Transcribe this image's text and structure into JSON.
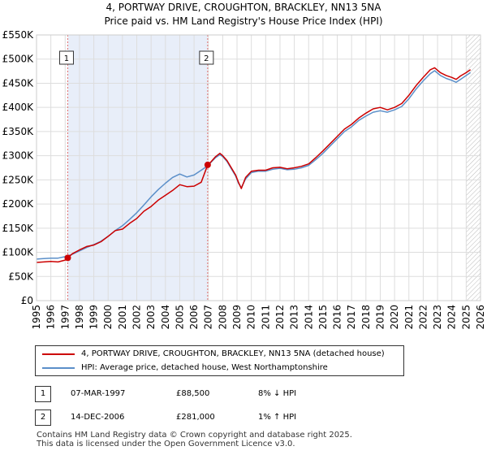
{
  "chart_data": {
    "type": "line",
    "title": "4, PORTWAY DRIVE, CROUGHTON, BRACKLEY, NN13 5NA",
    "subtitle": "Price paid vs. HM Land Registry's House Price Index (HPI)",
    "xlabel": "",
    "ylabel": "",
    "xlim": [
      1995,
      2026
    ],
    "ylim": [
      0,
      550000
    ],
    "y_ticks": [
      0,
      50000,
      100000,
      150000,
      200000,
      250000,
      300000,
      350000,
      400000,
      450000,
      500000,
      550000
    ],
    "y_tick_labels": [
      "£0",
      "£50K",
      "£100K",
      "£150K",
      "£200K",
      "£250K",
      "£300K",
      "£350K",
      "£400K",
      "£450K",
      "£500K",
      "£550K"
    ],
    "x_ticks": [
      1995,
      1996,
      1997,
      1998,
      1999,
      2000,
      2001,
      2002,
      2003,
      2004,
      2005,
      2006,
      2007,
      2008,
      2009,
      2010,
      2011,
      2012,
      2013,
      2014,
      2015,
      2016,
      2017,
      2018,
      2019,
      2020,
      2021,
      2022,
      2023,
      2024,
      2025,
      2026
    ],
    "x_tick_labels": [
      "1995",
      "1996",
      "1997",
      "1998",
      "1999",
      "2000",
      "2001",
      "2002",
      "2003",
      "2004",
      "2005",
      "2006",
      "2007",
      "2008",
      "2009",
      "2010",
      "2011",
      "2012",
      "2013",
      "2014",
      "2015",
      "2016",
      "2017",
      "2018",
      "2019",
      "2020",
      "2021",
      "2022",
      "2023",
      "2024",
      "2025",
      "2026"
    ],
    "grid": true,
    "shaded_region": [
      1997.18,
      2006.95
    ],
    "forecast_from": 2025.0,
    "series": [
      {
        "name": "4, PORTWAY DRIVE, CROUGHTON, BRACKLEY, NN13 5NA (detached house)",
        "color": "#cc0000",
        "x": [
          1995.0,
          1995.5,
          1996.0,
          1996.5,
          1997.0,
          1997.18,
          1997.5,
          1998.0,
          1998.5,
          1999.0,
          1999.5,
          2000.0,
          2000.5,
          2001.0,
          2001.5,
          2002.0,
          2002.5,
          2003.0,
          2003.5,
          2004.0,
          2004.5,
          2005.0,
          2005.5,
          2006.0,
          2006.5,
          2006.95,
          2007.2,
          2007.5,
          2007.8,
          2008.0,
          2008.3,
          2008.6,
          2008.9,
          2009.1,
          2009.3,
          2009.6,
          2010.0,
          2010.5,
          2011.0,
          2011.5,
          2012.0,
          2012.5,
          2013.0,
          2013.5,
          2014.0,
          2014.5,
          2015.0,
          2015.5,
          2016.0,
          2016.5,
          2017.0,
          2017.5,
          2018.0,
          2018.5,
          2019.0,
          2019.5,
          2020.0,
          2020.5,
          2021.0,
          2021.5,
          2022.0,
          2022.5,
          2022.8,
          2023.2,
          2023.6,
          2024.0,
          2024.3,
          2024.6,
          2025.0,
          2025.3
        ],
        "values": [
          79000,
          80000,
          81000,
          80000,
          84000,
          88500,
          97000,
          105000,
          112000,
          115000,
          122000,
          133000,
          145000,
          148000,
          160000,
          170000,
          185000,
          195000,
          208000,
          218000,
          228000,
          240000,
          236000,
          237000,
          245000,
          281000,
          288000,
          298000,
          305000,
          300000,
          290000,
          275000,
          260000,
          245000,
          232000,
          255000,
          268000,
          270000,
          270000,
          275000,
          276000,
          273000,
          275000,
          278000,
          283000,
          296000,
          310000,
          325000,
          340000,
          355000,
          365000,
          378000,
          388000,
          397000,
          400000,
          395000,
          400000,
          408000,
          425000,
          445000,
          462000,
          478000,
          482000,
          472000,
          466000,
          462000,
          458000,
          465000,
          472000,
          478000
        ]
      },
      {
        "name": "HPI: Average price, detached house, West Northamptonshire",
        "color": "#5b8fc9",
        "x": [
          1995.0,
          1995.5,
          1996.0,
          1996.5,
          1997.0,
          1997.5,
          1998.0,
          1998.5,
          1999.0,
          1999.5,
          2000.0,
          2000.5,
          2001.0,
          2001.5,
          2002.0,
          2002.5,
          2003.0,
          2003.5,
          2004.0,
          2004.5,
          2005.0,
          2005.5,
          2006.0,
          2006.5,
          2006.95,
          2007.2,
          2007.5,
          2007.8,
          2008.0,
          2008.3,
          2008.6,
          2008.9,
          2009.1,
          2009.3,
          2009.6,
          2010.0,
          2010.5,
          2011.0,
          2011.5,
          2012.0,
          2012.5,
          2013.0,
          2013.5,
          2014.0,
          2014.5,
          2015.0,
          2015.5,
          2016.0,
          2016.5,
          2017.0,
          2017.5,
          2018.0,
          2018.5,
          2019.0,
          2019.5,
          2020.0,
          2020.5,
          2021.0,
          2021.5,
          2022.0,
          2022.5,
          2022.8,
          2023.2,
          2023.6,
          2024.0,
          2024.3,
          2024.6,
          2025.0,
          2025.3
        ],
        "values": [
          86000,
          87000,
          88000,
          88000,
          91000,
          96000,
          103000,
          110000,
          116000,
          123000,
          133000,
          145000,
          155000,
          168000,
          182000,
          198000,
          215000,
          230000,
          243000,
          255000,
          262000,
          256000,
          260000,
          270000,
          279000,
          287000,
          296000,
          302000,
          298000,
          288000,
          273000,
          258000,
          243000,
          234000,
          252000,
          265000,
          268000,
          268000,
          272000,
          274000,
          271000,
          272000,
          275000,
          280000,
          292000,
          305000,
          320000,
          335000,
          350000,
          360000,
          373000,
          382000,
          390000,
          393000,
          390000,
          395000,
          402000,
          418000,
          438000,
          455000,
          470000,
          476000,
          466000,
          460000,
          456000,
          452000,
          458000,
          466000,
          472000
        ]
      }
    ],
    "markers": [
      {
        "label": "1",
        "x": 1997.18,
        "y": 88500
      },
      {
        "label": "2",
        "x": 2006.95,
        "y": 281000
      }
    ]
  },
  "legend": {
    "property": "4, PORTWAY DRIVE, CROUGHTON, BRACKLEY, NN13 5NA (detached house)",
    "hpi": "HPI: Average price, detached house, West Northamptonshire"
  },
  "transactions": [
    {
      "num": "1",
      "date": "07-MAR-1997",
      "price": "£88,500",
      "hpi": "8% ↓ HPI"
    },
    {
      "num": "2",
      "date": "14-DEC-2006",
      "price": "£281,000",
      "hpi": "1% ↑ HPI"
    }
  ],
  "footer": {
    "line1": "Contains HM Land Registry data © Crown copyright and database right 2025.",
    "line2": "This data is licensed under the Open Government Licence v3.0."
  }
}
